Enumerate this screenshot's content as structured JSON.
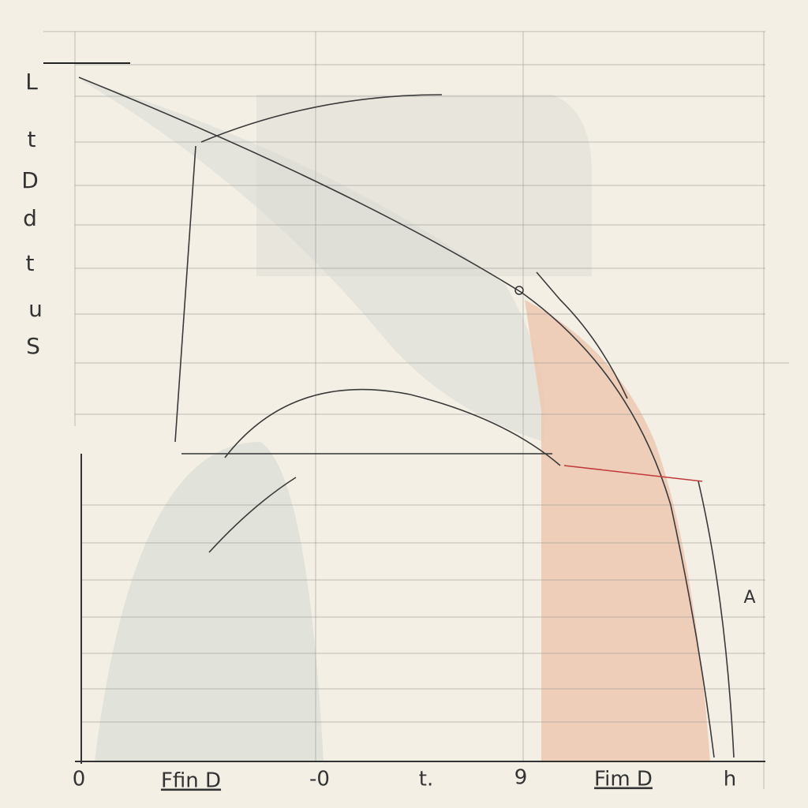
{
  "bottom_labels": [
    "0",
    "Ffin D",
    "-0",
    "t.",
    "9",
    "Fim D",
    "h"
  ],
  "left_labels": [
    "L",
    "t",
    "D",
    "d",
    "t",
    "u",
    "S"
  ],
  "side_labels": [
    "A"
  ]
}
